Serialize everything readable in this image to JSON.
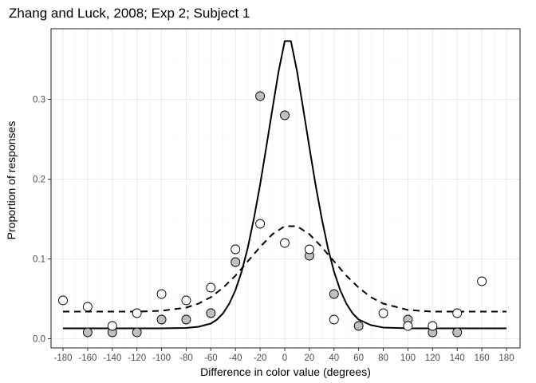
{
  "chart_data": {
    "type": "scatter",
    "title": "Zhang and Luck, 2008; Exp 2; Subject 1",
    "xlabel": "Difference in color value (degrees)",
    "ylabel": "Proportion of responses",
    "xlim": [
      -180,
      180
    ],
    "ylim": [
      0,
      0.375
    ],
    "xticks": [
      -180,
      -160,
      -140,
      -120,
      -100,
      -80,
      -60,
      -40,
      -20,
      0,
      20,
      40,
      60,
      80,
      100,
      120,
      140,
      160,
      180
    ],
    "yticks": [
      0.0,
      0.1,
      0.2,
      0.3
    ],
    "ytick_labels": [
      "0.0",
      "0.1",
      "0.2",
      "0.3"
    ],
    "grid": true,
    "series": [
      {
        "style": "points",
        "fill": "#bfbfbf",
        "stroke": "#000000",
        "x": [
          -160,
          -140,
          -120,
          -100,
          -80,
          -60,
          -40,
          -20,
          0,
          20,
          40,
          60,
          100,
          120,
          140
        ],
        "y": [
          0.008,
          0.008,
          0.008,
          0.024,
          0.024,
          0.032,
          0.096,
          0.304,
          0.28,
          0.104,
          0.056,
          0.016,
          0.024,
          0.008,
          0.008
        ]
      },
      {
        "style": "points",
        "fill": "#ffffff",
        "stroke": "#000000",
        "x": [
          -180,
          -160,
          -140,
          -120,
          -100,
          -80,
          -60,
          -40,
          -20,
          0,
          20,
          40,
          80,
          100,
          120,
          140,
          160
        ],
        "y": [
          0.048,
          0.04,
          0.016,
          0.032,
          0.056,
          0.048,
          0.064,
          0.112,
          0.144,
          0.12,
          0.112,
          0.024,
          0.032,
          0.016,
          0.016,
          0.032,
          0.072
        ]
      },
      {
        "style": "solid-curve",
        "stroke": "#000000",
        "x": [
          -180,
          -160,
          -140,
          -120,
          -100,
          -80,
          -70,
          -60,
          -55,
          -50,
          -45,
          -40,
          -35,
          -30,
          -25,
          -20,
          -15,
          -10,
          -5,
          0,
          5,
          10,
          15,
          20,
          25,
          30,
          35,
          40,
          45,
          50,
          55,
          60,
          70,
          80,
          100,
          120,
          140,
          160,
          180
        ],
        "y": [
          0.013,
          0.013,
          0.013,
          0.013,
          0.013,
          0.0135,
          0.015,
          0.019,
          0.024,
          0.032,
          0.044,
          0.061,
          0.084,
          0.114,
          0.151,
          0.193,
          0.24,
          0.288,
          0.335,
          0.373,
          0.373,
          0.335,
          0.288,
          0.24,
          0.193,
          0.151,
          0.114,
          0.084,
          0.061,
          0.044,
          0.032,
          0.024,
          0.017,
          0.014,
          0.013,
          0.013,
          0.013,
          0.013,
          0.013
        ]
      },
      {
        "style": "dashed-curve",
        "stroke": "#000000",
        "x": [
          -180,
          -160,
          -140,
          -120,
          -100,
          -80,
          -70,
          -60,
          -50,
          -40,
          -30,
          -20,
          -10,
          0,
          10,
          20,
          30,
          40,
          50,
          60,
          70,
          80,
          100,
          120,
          140,
          160,
          180
        ],
        "y": [
          0.034,
          0.034,
          0.034,
          0.034,
          0.035,
          0.039,
          0.044,
          0.052,
          0.064,
          0.079,
          0.097,
          0.115,
          0.131,
          0.141,
          0.141,
          0.131,
          0.115,
          0.097,
          0.079,
          0.064,
          0.052,
          0.044,
          0.036,
          0.034,
          0.034,
          0.034,
          0.034
        ]
      }
    ]
  }
}
